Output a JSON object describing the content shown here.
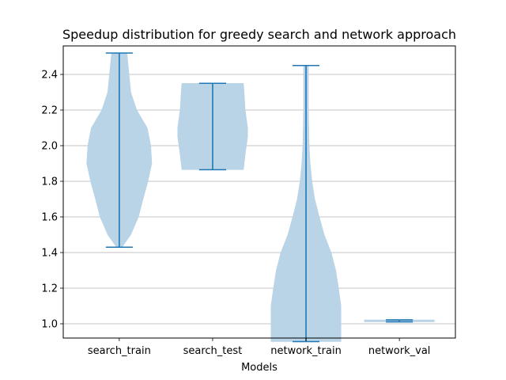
{
  "colors": {
    "violin_fill": "#b9d3e7",
    "stat_line": "#1f77b4",
    "grid": "#b0b0b0",
    "axes": "#000000"
  },
  "chart_data": {
    "type": "violin",
    "title": "Speedup distribution for greedy search and network approach",
    "xlabel": "Models",
    "ylabel": "",
    "ylim": [
      0.92,
      2.56
    ],
    "grid": {
      "y": true,
      "x": false
    },
    "yticks": [
      1.0,
      1.2,
      1.4,
      1.6,
      1.8,
      2.0,
      2.2,
      2.4
    ],
    "ytick_labels": [
      "1.0",
      "1.2",
      "1.4",
      "1.6",
      "1.8",
      "2.0",
      "2.2",
      "2.4"
    ],
    "categories": [
      "search_train",
      "search_test",
      "network_train",
      "network_val"
    ],
    "series": [
      {
        "category": "search_train",
        "min": 1.43,
        "max": 2.52,
        "density": [
          [
            1.43,
            0.08
          ],
          [
            1.5,
            0.33
          ],
          [
            1.6,
            0.55
          ],
          [
            1.7,
            0.68
          ],
          [
            1.8,
            0.82
          ],
          [
            1.9,
            0.93
          ],
          [
            2.0,
            0.9
          ],
          [
            2.1,
            0.8
          ],
          [
            2.2,
            0.5
          ],
          [
            2.3,
            0.33
          ],
          [
            2.4,
            0.28
          ],
          [
            2.52,
            0.22
          ]
        ]
      },
      {
        "category": "search_test",
        "min": 1.865,
        "max": 2.35,
        "density": [
          [
            1.865,
            0.88
          ],
          [
            1.95,
            0.93
          ],
          [
            2.05,
            1.0
          ],
          [
            2.1,
            1.0
          ],
          [
            2.2,
            0.93
          ],
          [
            2.3,
            0.9
          ],
          [
            2.35,
            0.88
          ]
        ]
      },
      {
        "category": "network_train",
        "min": 0.9,
        "max": 2.45,
        "density": [
          [
            0.9,
            1.0
          ],
          [
            1.0,
            1.0
          ],
          [
            1.1,
            1.0
          ],
          [
            1.2,
            0.93
          ],
          [
            1.3,
            0.85
          ],
          [
            1.4,
            0.72
          ],
          [
            1.5,
            0.52
          ],
          [
            1.6,
            0.38
          ],
          [
            1.7,
            0.25
          ],
          [
            1.8,
            0.17
          ],
          [
            1.9,
            0.12
          ],
          [
            2.0,
            0.09
          ],
          [
            2.2,
            0.07
          ],
          [
            2.45,
            0.07
          ]
        ]
      },
      {
        "category": "network_val",
        "min": 1.011,
        "max": 1.022,
        "density": [
          [
            1.011,
            1.0
          ],
          [
            1.016,
            1.0
          ],
          [
            1.022,
            1.0
          ]
        ]
      }
    ]
  }
}
